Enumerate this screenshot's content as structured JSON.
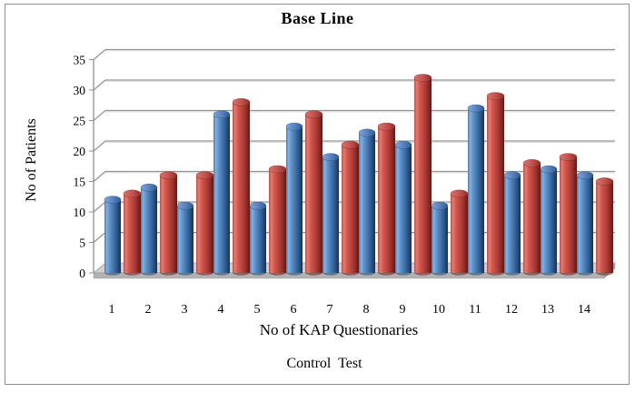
{
  "chart_data": {
    "type": "bar",
    "style": "3d-cylinder",
    "title": "Base Line",
    "ylabel": "No of Patients",
    "xlabel": "No of KAP Questionaries",
    "footer": "Control Test",
    "categories": [
      "1",
      "2",
      "3",
      "4",
      "5",
      "6",
      "7",
      "8",
      "9",
      "10",
      "11",
      "12",
      "13",
      "14"
    ],
    "series": [
      {
        "name": "blue",
        "color": "#4F81BD",
        "values": [
          12,
          14,
          11,
          26,
          11,
          24,
          19,
          23,
          21,
          11,
          27,
          16,
          17,
          16
        ]
      },
      {
        "name": "red",
        "color": "#C0504D",
        "values": [
          13,
          16,
          16,
          28,
          17,
          26,
          21,
          24,
          32,
          13,
          29,
          18,
          19,
          15
        ]
      }
    ],
    "ylim": [
      0,
      35
    ],
    "yticks": [
      0,
      5,
      10,
      15,
      20,
      25,
      30,
      35
    ],
    "grid": true,
    "legend": "none"
  },
  "colors": {
    "series_blue": "#4F81BD",
    "series_red": "#C0504D",
    "floor": "#CFCFCF",
    "gridline": "#929292",
    "frame_border": "#8F8F8F",
    "text": "#000000",
    "background": "#FFFFFF"
  }
}
